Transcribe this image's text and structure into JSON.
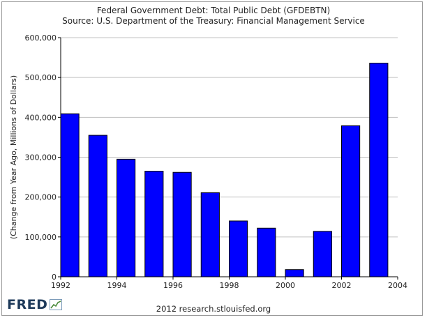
{
  "chart_data": {
    "type": "bar",
    "title": "Federal Government Debt: Total Public Debt (GFDEBTN)",
    "subtitle": "Source: U.S. Department of the Treasury: Financial Management Service",
    "xlabel": "",
    "ylabel": "(Change from Year Ago, Millions of Dollars)",
    "x": [
      1992,
      1993,
      1994,
      1995,
      1996,
      1997,
      1998,
      1999,
      2000,
      2001,
      2002,
      2003
    ],
    "values": [
      409000,
      355000,
      295000,
      265000,
      262000,
      211000,
      140000,
      122000,
      18000,
      114000,
      379000,
      536000
    ],
    "xlim": [
      1992,
      2004
    ],
    "ylim": [
      0,
      600000
    ],
    "x_ticks": [
      "1992",
      "1994",
      "1996",
      "1998",
      "2000",
      "2002",
      "2004"
    ],
    "x_tick_values": [
      1992,
      1994,
      1996,
      1998,
      2000,
      2002,
      2004
    ],
    "y_ticks": [
      "0",
      "100,000",
      "200,000",
      "300,000",
      "400,000",
      "500,000",
      "600,000"
    ],
    "y_tick_values": [
      0,
      100000,
      200000,
      300000,
      400000,
      500000,
      600000
    ],
    "grid": true,
    "bar_color": "#0000ff",
    "bar_border_color": "#000000"
  },
  "branding": {
    "logo_text": "FRED",
    "footer": "2012 research.stlouisfed.org"
  }
}
